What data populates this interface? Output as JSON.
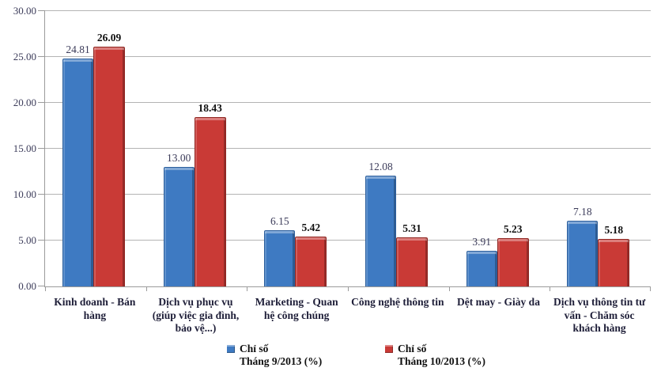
{
  "chart_data": {
    "type": "bar",
    "title": "",
    "xlabel": "",
    "ylabel": "",
    "categories": [
      "Kinh doanh - Bán hàng",
      "Dịch vụ phục vụ (giúp việc gia đình, bảo vệ...)",
      "Marketing - Quan hệ công chúng",
      "Công nghệ thông tin",
      "Dệt may - Giày da",
      "Dịch vụ thông tin tư vấn - Chăm sóc khách hàng"
    ],
    "series": [
      {
        "name": "Chỉ số Tháng 9/2013 (%)",
        "legend_label": "Chỉ số\nTháng 9/2013 (%)",
        "color": "#3e7ac2",
        "values": [
          24.81,
          13.0,
          6.15,
          12.08,
          3.91,
          7.18
        ],
        "labels": [
          "24.81",
          "13.00",
          "6.15",
          "12.08",
          "3.91",
          "7.18"
        ]
      },
      {
        "name": "Chỉ số Tháng 10/2013 (%)",
        "legend_label": "Chỉ số\nTháng 10/2013 (%)",
        "color": "#c93a36",
        "values": [
          26.09,
          18.43,
          5.42,
          5.31,
          5.23,
          5.18
        ],
        "labels": [
          "26.09",
          "18.43",
          "5.42",
          "5.31",
          "5.23",
          "5.18"
        ]
      }
    ],
    "ylim": [
      0,
      30
    ],
    "ytick_step": 5,
    "ytick_labels": [
      "0.00",
      "5.00",
      "10.00",
      "15.00",
      "20.00",
      "25.00",
      "30.00"
    ],
    "grid": true,
    "legend_position": "bottom"
  }
}
